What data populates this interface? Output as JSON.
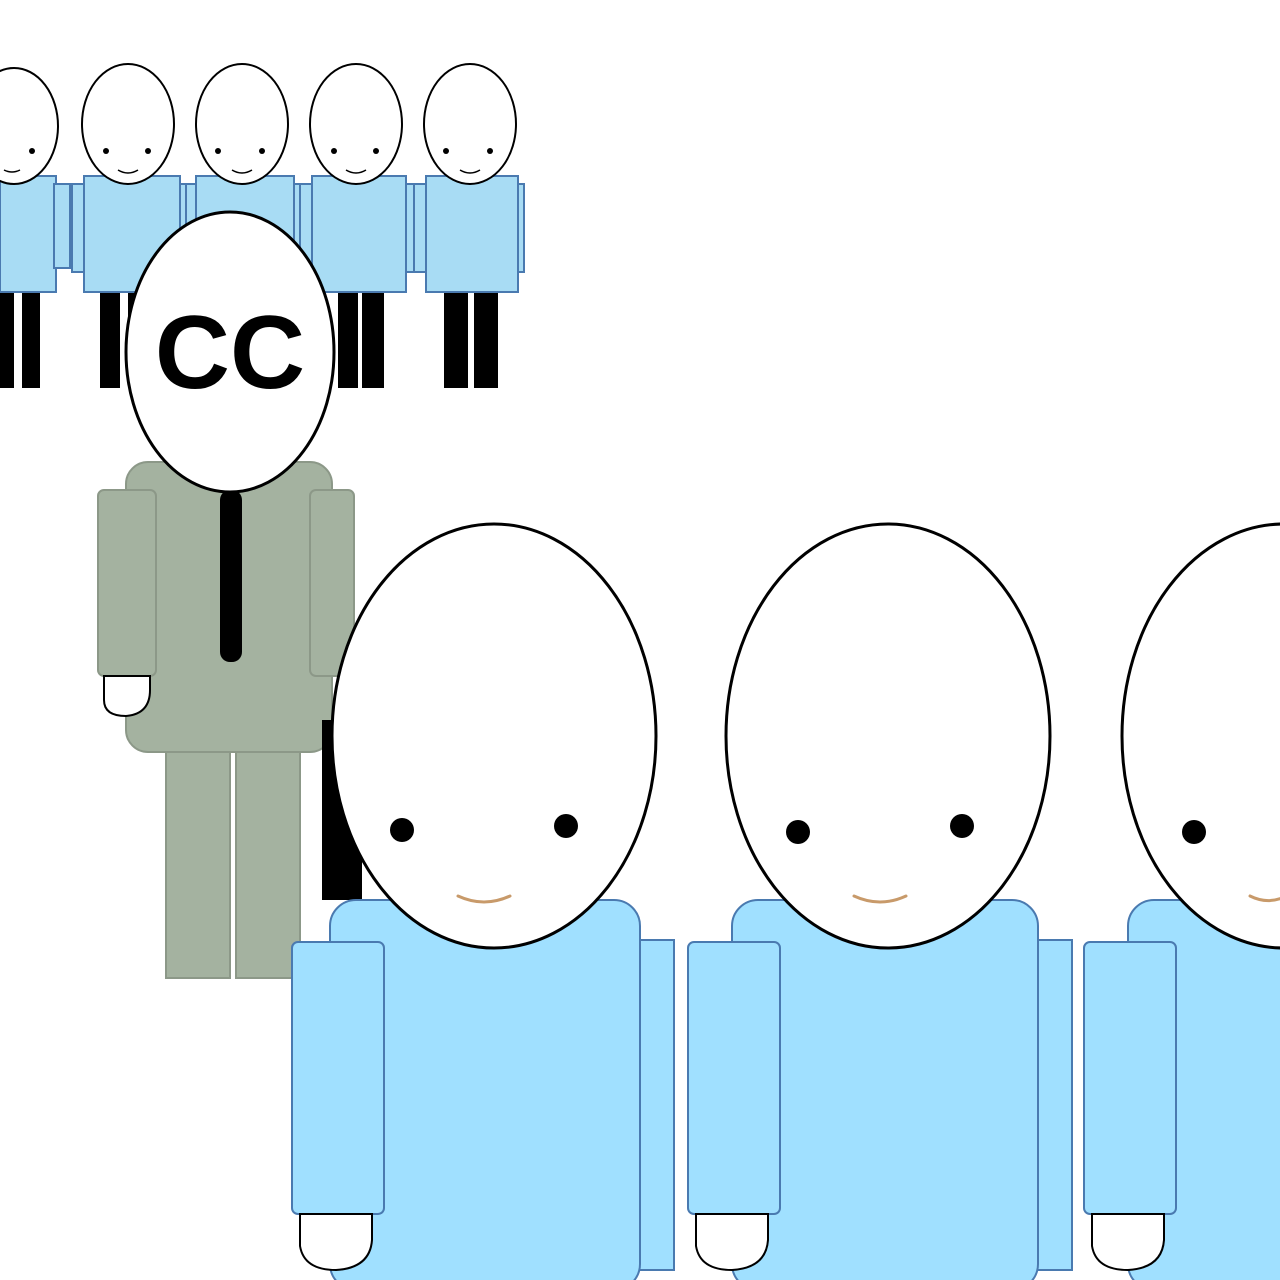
{
  "scene": {
    "background_color": "#ffffff",
    "colors": {
      "skin": "#ffffff",
      "outline": "#000000",
      "worker_shirt": "#a8dcf4",
      "worker_shirt_front": "#a0e0ff",
      "worker_shirt_outline": "#4a7ab0",
      "leg": "#000000",
      "manager_suit": "#a4b2a0",
      "manager_suit_outline": "#8c9888",
      "tie": "#000000"
    },
    "manager": {
      "head_label": "CC",
      "icon": "manager-figure-icon"
    },
    "back_row": {
      "count": 5,
      "icon": "small-worker-figure-icon"
    },
    "front_row": {
      "count": 3,
      "icon": "large-worker-figure-icon"
    }
  }
}
